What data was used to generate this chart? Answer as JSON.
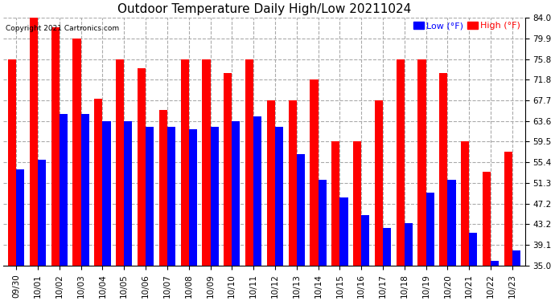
{
  "title": "Outdoor Temperature Daily High/Low 20211024",
  "copyright": "Copyright 2021 Cartronics.com",
  "legend_low": "Low",
  "legend_high": "High",
  "legend_unit": "(°F)",
  "dates": [
    "09/30",
    "10/01",
    "10/02",
    "10/03",
    "10/04",
    "10/05",
    "10/06",
    "10/07",
    "10/08",
    "10/09",
    "10/10",
    "10/11",
    "10/12",
    "10/13",
    "10/14",
    "10/15",
    "10/16",
    "10/17",
    "10/18",
    "10/19",
    "10/20",
    "10/21",
    "10/22",
    "10/23"
  ],
  "highs": [
    75.8,
    84.0,
    82.0,
    79.9,
    68.0,
    75.8,
    74.0,
    65.8,
    75.8,
    75.8,
    73.0,
    75.8,
    67.7,
    67.7,
    71.8,
    59.5,
    59.5,
    67.7,
    75.8,
    75.8,
    73.0,
    59.5,
    53.5,
    57.5
  ],
  "lows": [
    54.0,
    56.0,
    65.0,
    65.0,
    63.6,
    63.6,
    62.5,
    62.5,
    62.0,
    62.5,
    63.6,
    64.5,
    62.5,
    57.0,
    52.0,
    48.5,
    45.0,
    42.5,
    43.5,
    49.5,
    52.0,
    41.5,
    36.0,
    38.0
  ],
  "ylim_min": 35.0,
  "ylim_max": 84.0,
  "yticks": [
    35.0,
    39.1,
    43.2,
    47.2,
    51.3,
    55.4,
    59.5,
    63.6,
    67.7,
    71.8,
    75.8,
    79.9,
    84.0
  ],
  "high_color": "#ff0000",
  "low_color": "#0000ff",
  "background_color": "#ffffff",
  "grid_color": "#aaaaaa",
  "title_fontsize": 11,
  "tick_fontsize": 7.5,
  "bar_width": 0.38
}
